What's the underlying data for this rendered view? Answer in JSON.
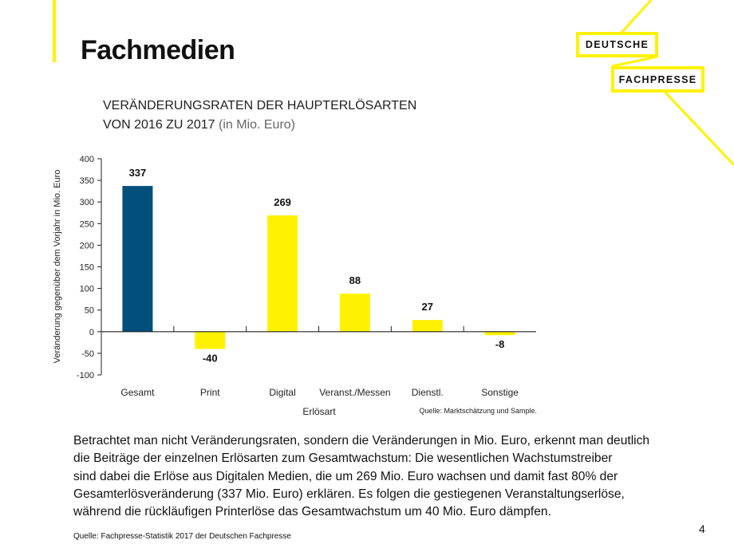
{
  "page": {
    "title": "Fachmedien",
    "page_number": "4",
    "source": "Quelle: Fachpresse-Statistik 2017 der Deutschen Fachpresse"
  },
  "logo": {
    "line1": "DEUTSCHE",
    "line2": "FACHPRESSE"
  },
  "body_lines": [
    "Betrachtet man nicht Veränderungsraten, sondern die Veränderungen in Mio. Euro, erkennt man deutlich",
    "die Beiträge der einzelnen Erlösarten zum Gesamtwachstum: Die wesentlichen Wachstumstreiber",
    "sind dabei die Erlöse aus Digitalen Medien, die um 269 Mio. Euro wachsen und damit fast 80% der",
    "Gesamterlösveränderung (337 Mio. Euro) erklären. Es folgen die gestiegenen Veranstaltungserlöse,",
    "während die rückläufigen Printerlöse das Gesamtwachstum um 40 Mio. Euro dämpfen."
  ],
  "colors": {
    "accent": "#fff200",
    "primary_bar": "#004f7c",
    "bar": "#fff200"
  },
  "chart_data": {
    "type": "bar",
    "title": "VERÄNDERUNGSRATEN DER HAUPTERLÖSARTEN",
    "title_line2": "VON 2016 ZU 2017",
    "title_unit": "(in Mio. Euro)",
    "categories": [
      "Gesamt",
      "Print",
      "Digital",
      "Veranst./Messen",
      "Dienstl.",
      "Sonstige"
    ],
    "values": [
      337,
      -40,
      269,
      88,
      27,
      -8
    ],
    "data_labels": [
      "337",
      "-40",
      "269",
      "88",
      "27",
      "-8"
    ],
    "xlabel": "Erlösart",
    "ylabel": "Veränderung gegenüber dem Vorjahr in Mio. Euro",
    "ylim": [
      -100,
      400
    ],
    "yticks": [
      400,
      350,
      300,
      250,
      200,
      150,
      100,
      50,
      0,
      -50,
      -100
    ],
    "grid": false,
    "note": "Quelle: Marktschätzung und Sample."
  }
}
